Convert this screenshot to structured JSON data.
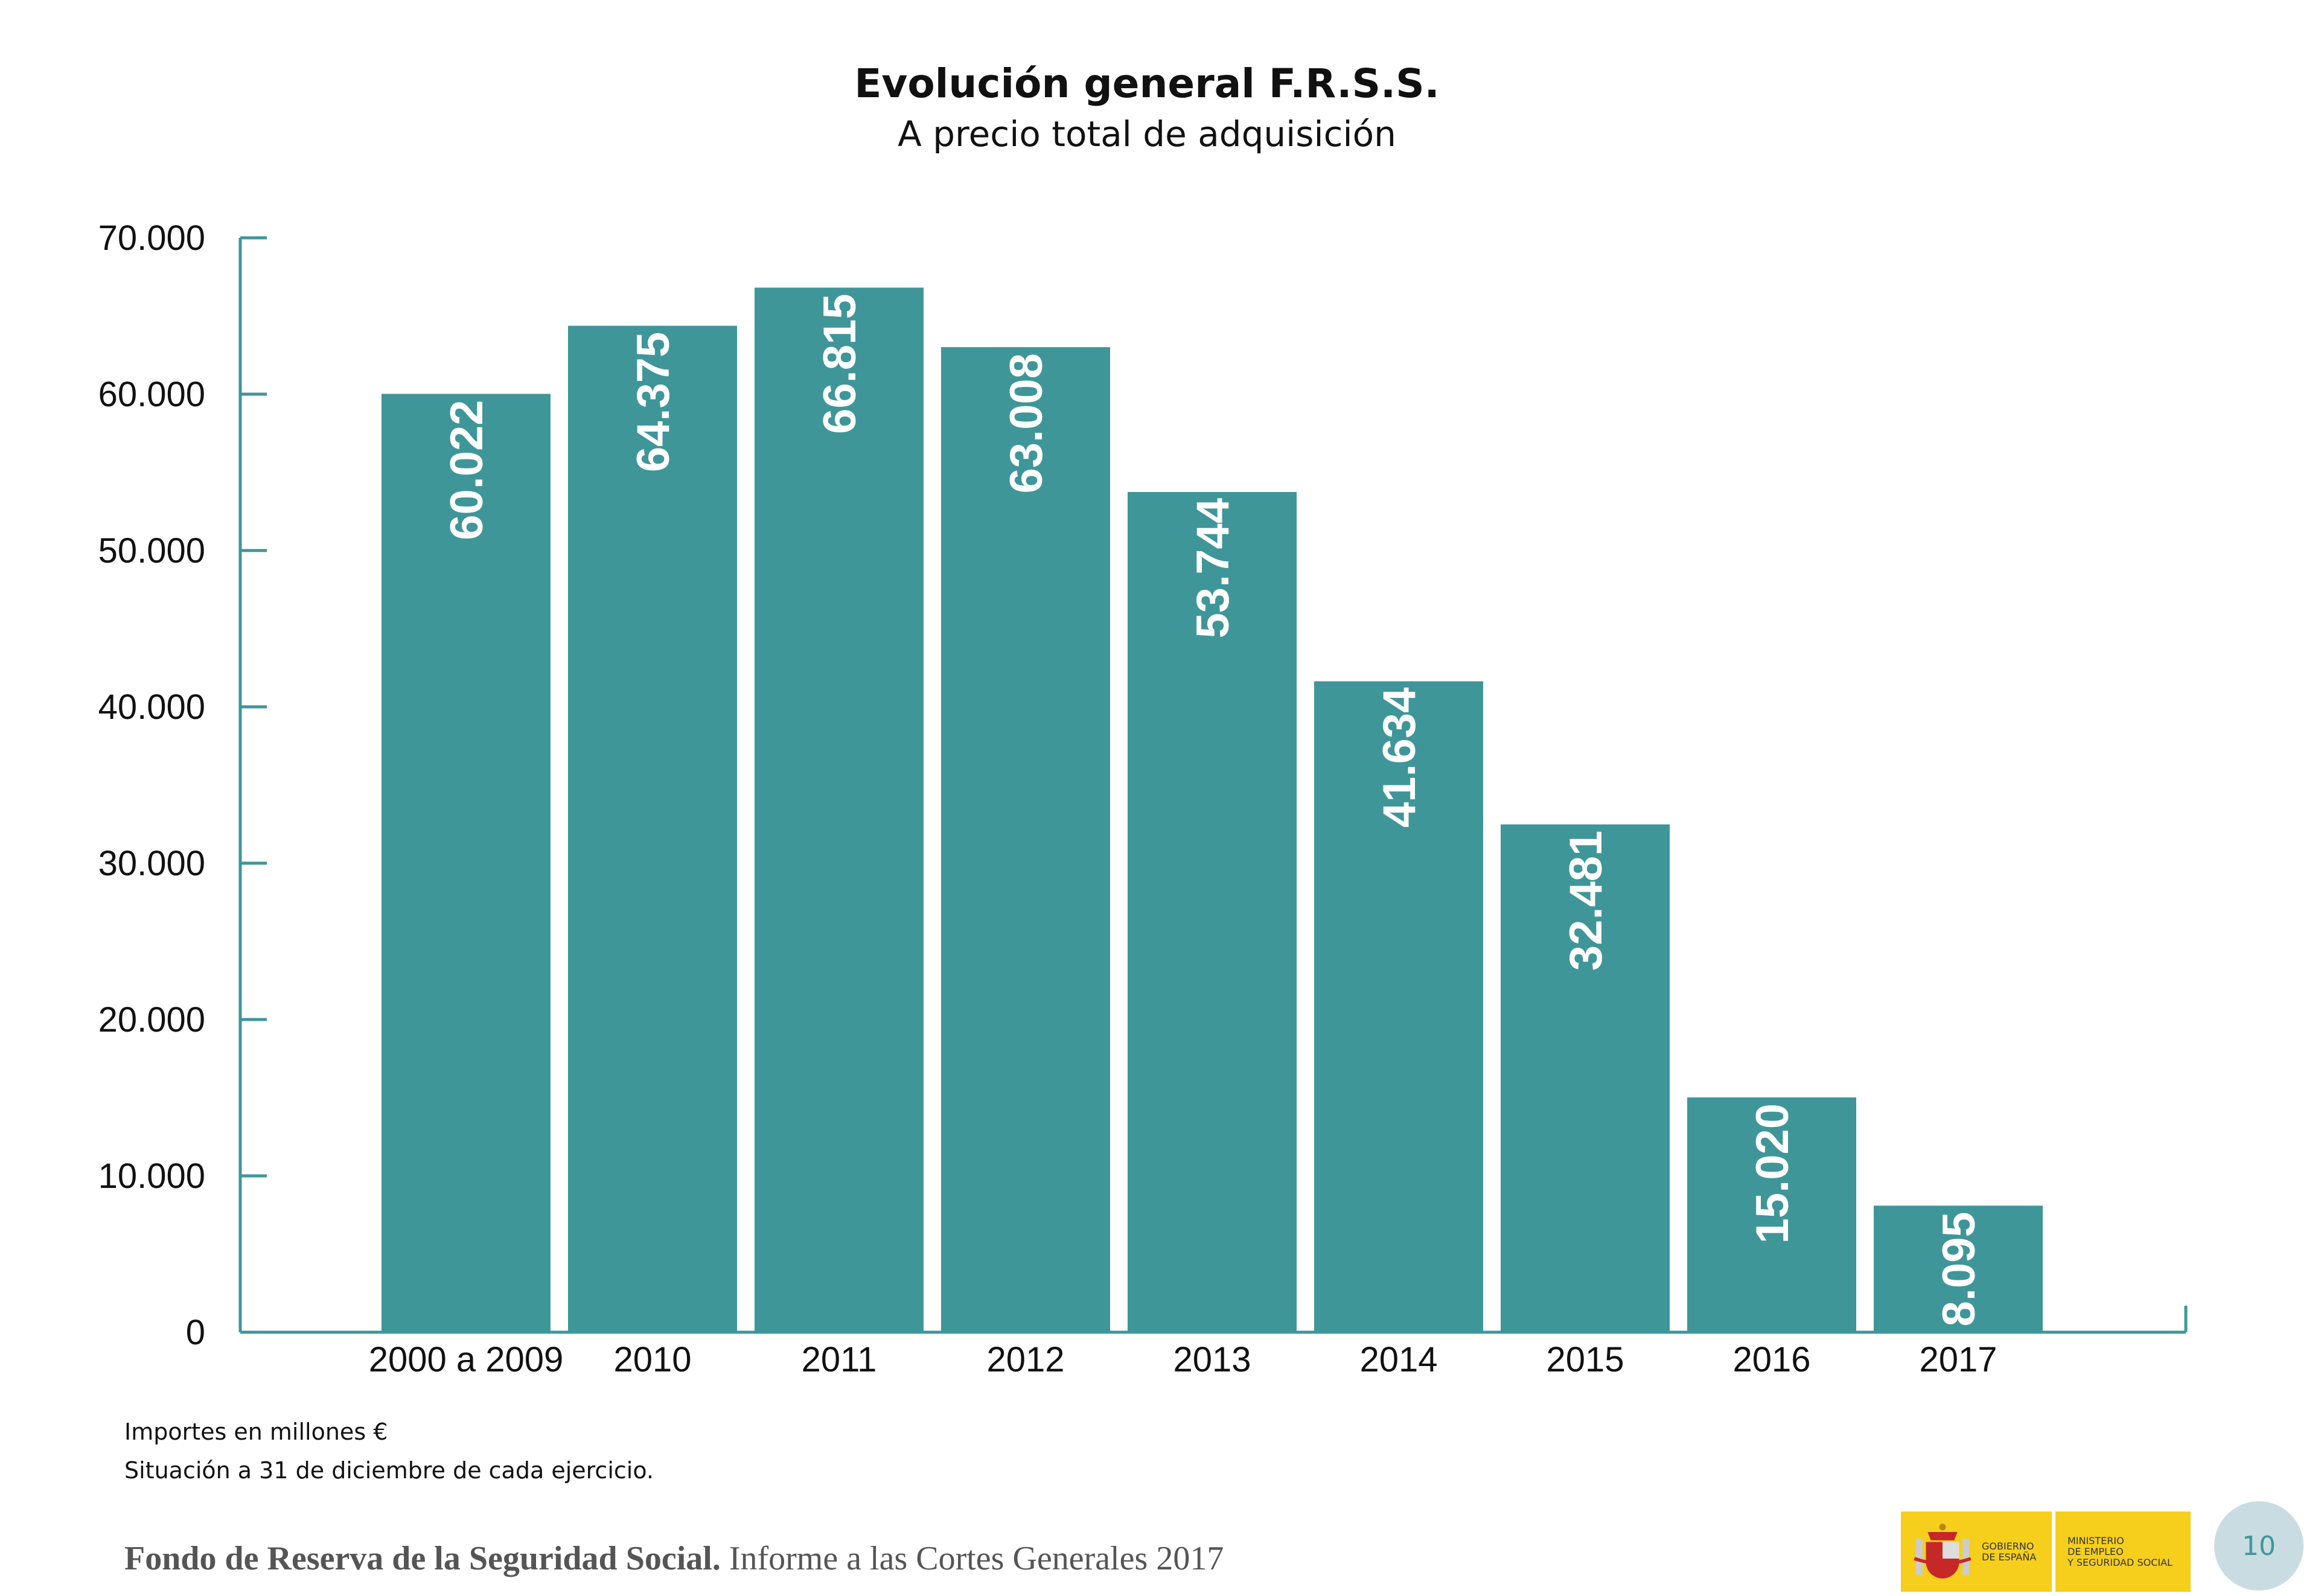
{
  "chart_data": {
    "type": "bar",
    "title": "Evolución general F.R.S.S.",
    "subtitle": "A precio total de adquisición",
    "categories": [
      "2000 a 2009",
      "2010",
      "2011",
      "2012",
      "2013",
      "2014",
      "2015",
      "2016",
      "2017"
    ],
    "values": [
      60022,
      64375,
      66815,
      63008,
      53744,
      41634,
      32481,
      15020,
      8095
    ],
    "data_labels": [
      "60.022",
      "64.375",
      "66.815",
      "63.008",
      "53.744",
      "41.634",
      "32.481",
      "15.020",
      "8.095"
    ],
    "yticks": [
      0,
      10000,
      20000,
      30000,
      40000,
      50000,
      60000,
      70000
    ],
    "ytick_labels": [
      "0",
      "10.000",
      "20.000",
      "30.000",
      "40.000",
      "50.000",
      "60.000",
      "70.000"
    ],
    "ylim": [
      0,
      70000
    ],
    "xlabel": "",
    "ylabel": "",
    "grid": false,
    "bar_color": "#3f9699",
    "axis_color": "#3f9699"
  },
  "notes": [
    "Importes en millones €",
    "Situación a 31 de diciembre de cada ejercicio."
  ],
  "footer": {
    "bold": "Fondo de Reserva de la Seguridad Social.",
    "regular": " Informe a las Cortes Generales 2017"
  },
  "logo": {
    "left": [
      "GOBIERNO",
      "DE ESPAÑA"
    ],
    "right": [
      "MINISTERIO",
      "DE EMPLEO",
      "Y SEGURIDAD SOCIAL"
    ]
  },
  "page_number": "10"
}
